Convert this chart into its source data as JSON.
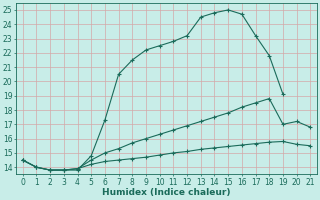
{
  "line1_x": [
    0,
    1,
    2,
    3,
    4,
    5,
    6,
    7,
    8,
    9,
    10,
    11,
    12,
    13,
    14,
    15,
    16,
    17,
    18,
    19
  ],
  "line1_y": [
    14.5,
    14.0,
    13.8,
    13.8,
    13.8,
    14.8,
    17.3,
    20.5,
    21.5,
    22.2,
    22.5,
    22.8,
    23.2,
    24.5,
    24.8,
    25.0,
    24.7,
    23.2,
    21.8,
    19.1
  ],
  "line2_x": [
    0,
    1,
    2,
    3,
    4,
    5,
    6,
    7,
    8,
    9,
    10,
    11,
    12,
    13,
    14,
    15,
    16,
    17,
    18,
    19,
    20,
    21
  ],
  "line2_y": [
    14.5,
    14.0,
    13.8,
    13.8,
    13.9,
    14.5,
    15.0,
    15.3,
    15.7,
    16.0,
    16.3,
    16.6,
    16.9,
    17.2,
    17.5,
    17.8,
    18.2,
    18.5,
    18.8,
    17.0,
    17.2,
    16.8
  ],
  "line3_x": [
    0,
    1,
    2,
    3,
    4,
    5,
    6,
    7,
    8,
    9,
    10,
    11,
    12,
    13,
    14,
    15,
    16,
    17,
    18,
    19,
    20,
    21
  ],
  "line3_y": [
    14.5,
    14.0,
    13.8,
    13.8,
    13.9,
    14.2,
    14.4,
    14.5,
    14.6,
    14.7,
    14.85,
    15.0,
    15.1,
    15.25,
    15.35,
    15.45,
    15.55,
    15.65,
    15.75,
    15.8,
    15.6,
    15.5
  ],
  "bg_color": "#c8ede8",
  "grid_color": "#d4a8a8",
  "line_color": "#1a6b5a",
  "xlabel": "Humidex (Indice chaleur)",
  "xlim": [
    -0.5,
    21.5
  ],
  "ylim": [
    13.5,
    25.5
  ],
  "xticks": [
    0,
    1,
    2,
    3,
    4,
    5,
    6,
    7,
    8,
    9,
    10,
    11,
    12,
    13,
    14,
    15,
    16,
    17,
    18,
    19,
    20,
    21
  ],
  "yticks": [
    14,
    15,
    16,
    17,
    18,
    19,
    20,
    21,
    22,
    23,
    24,
    25
  ],
  "xlabel_fontsize": 6.5,
  "tick_fontsize": 5.5,
  "marker": "+"
}
